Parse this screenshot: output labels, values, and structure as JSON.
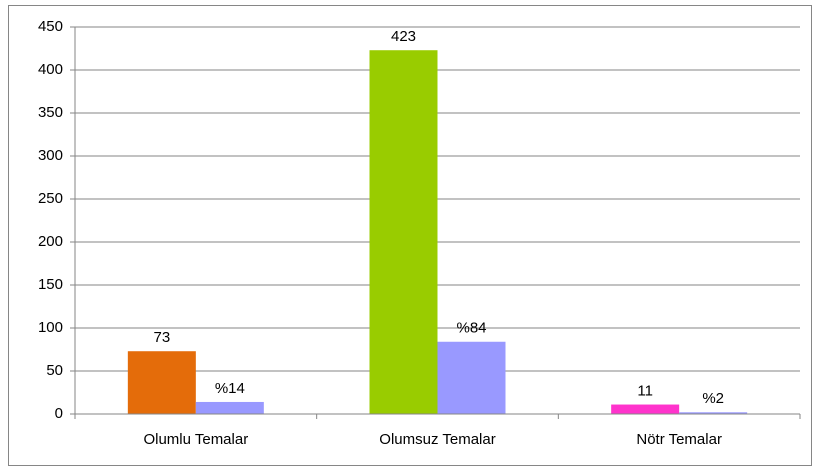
{
  "chart_data": {
    "type": "bar",
    "categories": [
      "Olumlu Temalar",
      "Olumsuz Temalar",
      "Nötr Temalar"
    ],
    "series": [
      {
        "colors": [
          "#e46c0a",
          "#99cc00",
          "#ff33cc"
        ],
        "values": [
          73,
          423,
          11
        ]
      },
      {
        "color": "#9999ff",
        "values": [
          14,
          84,
          2
        ],
        "value_labels": [
          "%14",
          "%84",
          "%2"
        ]
      }
    ],
    "ylim": [
      0,
      450
    ],
    "yticks": [
      0,
      50,
      100,
      150,
      200,
      250,
      300,
      350,
      400,
      450
    ],
    "grid": true
  }
}
